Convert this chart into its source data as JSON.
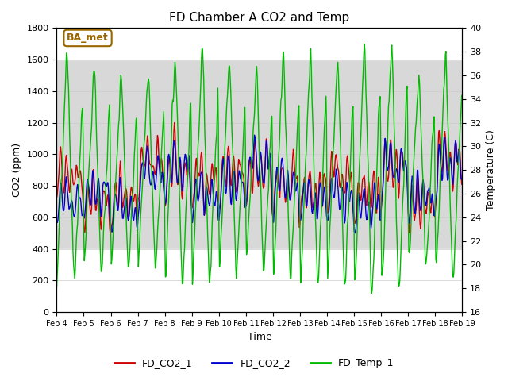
{
  "title": "FD Chamber A CO2 and Temp",
  "xlabel": "Time",
  "ylabel_left": "CO2 (ppm)",
  "ylabel_right": "Temperature (C)",
  "ylim_left": [
    0,
    1800
  ],
  "ylim_right": [
    16,
    40
  ],
  "yticks_left": [
    0,
    200,
    400,
    600,
    800,
    1000,
    1200,
    1400,
    1600,
    1800
  ],
  "yticks_right": [
    16,
    18,
    20,
    22,
    24,
    26,
    28,
    30,
    32,
    34,
    36,
    38,
    40
  ],
  "xtick_labels": [
    "Feb 4",
    "Feb 5",
    "Feb 6",
    "Feb 7",
    "Feb 8",
    "Feb 9",
    "Feb 10",
    "Feb 11",
    "Feb 12",
    "Feb 13",
    "Feb 14",
    "Feb 15",
    "Feb 16",
    "Feb 17",
    "Feb 18",
    "Feb 19"
  ],
  "color_co2_1": "#cc0000",
  "color_co2_2": "#0000cc",
  "color_temp": "#00bb00",
  "legend_labels": [
    "FD_CO2_1",
    "FD_CO2_2",
    "FD_Temp_1"
  ],
  "annotation_text": "BA_met",
  "annotation_fg": "#996600",
  "annotation_bg": "#ffffff",
  "band_top_color": "#e8e8e8",
  "band_mid_color": "#d8d8d8",
  "background_color": "#ffffff",
  "linewidth": 1.0,
  "n_days": 15,
  "n_pts_per_day": 48
}
